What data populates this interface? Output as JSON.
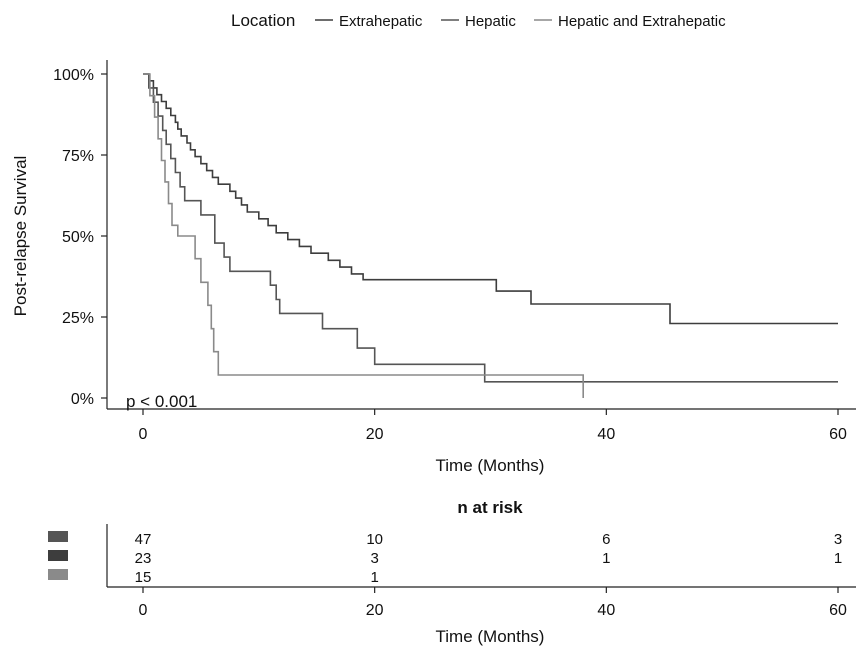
{
  "legend": {
    "title": "Location",
    "items": [
      {
        "label": "Extrahepatic",
        "color": "#3d3d3d"
      },
      {
        "label": "Hepatic",
        "color": "#555555"
      },
      {
        "label": "Hepatic and Extrahepatic",
        "color": "#8a8a8a"
      }
    ]
  },
  "chart_data": {
    "type": "line",
    "subtype": "kaplan-meier step",
    "xlabel": "Time (Months)",
    "ylabel": "Post-relapse Survival",
    "xlim": [
      0,
      60
    ],
    "ylim": [
      0,
      1
    ],
    "x_ticks": [
      "0",
      "20",
      "40",
      "60"
    ],
    "y_ticks": [
      "0%",
      "25%",
      "50%",
      "75%",
      "100%"
    ],
    "grid": false,
    "legend_position": "top",
    "annotation": "p < 0.001",
    "series": [
      {
        "name": "Extrahepatic",
        "color": "#3d3d3d",
        "steps": [
          [
            0,
            1.0
          ],
          [
            0.5,
            0.979
          ],
          [
            0.9,
            0.957
          ],
          [
            1.2,
            0.936
          ],
          [
            1.6,
            0.915
          ],
          [
            2.0,
            0.894
          ],
          [
            2.4,
            0.872
          ],
          [
            2.8,
            0.851
          ],
          [
            3.0,
            0.83
          ],
          [
            3.3,
            0.809
          ],
          [
            3.8,
            0.787
          ],
          [
            4.1,
            0.766
          ],
          [
            4.5,
            0.745
          ],
          [
            5.0,
            0.723
          ],
          [
            5.5,
            0.702
          ],
          [
            6.0,
            0.681
          ],
          [
            6.5,
            0.66
          ],
          [
            7.5,
            0.638
          ],
          [
            8.0,
            0.617
          ],
          [
            8.5,
            0.596
          ],
          [
            9.0,
            0.574
          ],
          [
            10.0,
            0.553
          ],
          [
            10.8,
            0.532
          ],
          [
            11.5,
            0.51
          ],
          [
            12.5,
            0.489
          ],
          [
            13.5,
            0.468
          ],
          [
            14.5,
            0.447
          ],
          [
            16.0,
            0.425
          ],
          [
            17.0,
            0.404
          ],
          [
            18.0,
            0.383
          ],
          [
            19.0,
            0.365
          ],
          [
            30.5,
            0.33
          ],
          [
            33.5,
            0.29
          ],
          [
            45.5,
            0.23
          ],
          [
            60,
            0.23
          ]
        ]
      },
      {
        "name": "Hepatic",
        "color": "#555555",
        "steps": [
          [
            0,
            1.0
          ],
          [
            0.5,
            0.957
          ],
          [
            0.9,
            0.913
          ],
          [
            1.3,
            0.87
          ],
          [
            1.7,
            0.826
          ],
          [
            2.0,
            0.783
          ],
          [
            2.4,
            0.739
          ],
          [
            2.8,
            0.696
          ],
          [
            3.2,
            0.652
          ],
          [
            3.6,
            0.609
          ],
          [
            5.0,
            0.565
          ],
          [
            6.2,
            0.478
          ],
          [
            7.0,
            0.435
          ],
          [
            7.5,
            0.391
          ],
          [
            11.0,
            0.348
          ],
          [
            11.5,
            0.304
          ],
          [
            11.8,
            0.261
          ],
          [
            15.5,
            0.214
          ],
          [
            18.5,
            0.154
          ],
          [
            20.0,
            0.104
          ],
          [
            29.5,
            0.05
          ],
          [
            60,
            0.05
          ]
        ]
      },
      {
        "name": "Hepatic and Extrahepatic",
        "color": "#8a8a8a",
        "steps": [
          [
            0,
            1.0
          ],
          [
            0.6,
            0.933
          ],
          [
            1.0,
            0.867
          ],
          [
            1.3,
            0.8
          ],
          [
            1.6,
            0.733
          ],
          [
            1.9,
            0.667
          ],
          [
            2.2,
            0.6
          ],
          [
            2.5,
            0.533
          ],
          [
            3.0,
            0.5
          ],
          [
            4.5,
            0.43
          ],
          [
            5.0,
            0.357
          ],
          [
            5.6,
            0.286
          ],
          [
            5.9,
            0.214
          ],
          [
            6.1,
            0.143
          ],
          [
            6.5,
            0.071
          ],
          [
            38.0,
            0.071
          ],
          [
            38.0,
            0.0
          ]
        ]
      }
    ],
    "risk_table": {
      "title": "n at risk",
      "xlabel": "Time (Months)",
      "times": [
        "0",
        "20",
        "40",
        "60"
      ],
      "rows": [
        {
          "color": "#555555",
          "counts": [
            "47",
            "10",
            "6",
            "3"
          ]
        },
        {
          "color": "#3d3d3d",
          "counts": [
            "23",
            "3",
            "1",
            "1"
          ]
        },
        {
          "color": "#8a8a8a",
          "counts": [
            "15",
            "1",
            "",
            ""
          ]
        }
      ]
    }
  }
}
